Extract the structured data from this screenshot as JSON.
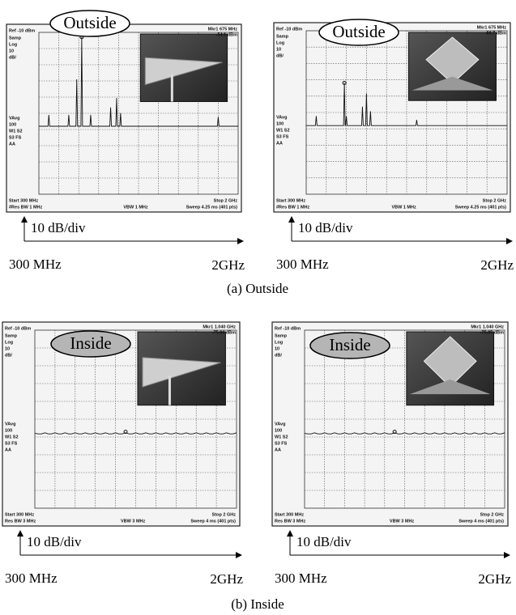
{
  "panels": [
    {
      "badge": "Outside",
      "ref": "Ref -10 dBm",
      "marker": "Mkr1 675 MHz",
      "marker_level": "-54.1 dBm",
      "side_labels": [
        "Samp",
        "Log",
        "10",
        "dB/"
      ],
      "avg_labels": [
        "VAvg",
        "100",
        "W1 S2",
        "S3 FS",
        "AA"
      ],
      "start": "Start 300 MHz",
      "stop": "Stop 2 GHz",
      "res_bw": "#Res BW 1 MHz",
      "vbw": "VBW 1 MHz",
      "sweep": "Sweep 4.25 ms (401 pts)",
      "scale": "10 dB/div",
      "x_start": "300 MHz",
      "x_end": "2GHz"
    },
    {
      "badge": "Outside",
      "ref": "Ref -10 dBm",
      "marker": "Mkr1 675 MHz",
      "marker_level": "-60.7 dBm",
      "side_labels": [
        "Samp",
        "Log",
        "10",
        "dB/"
      ],
      "avg_labels": [
        "VAvg",
        "100",
        "W1 S2",
        "S3 FS",
        "AA"
      ],
      "start": "Start 300 MHz",
      "stop": "Stop 2 GHz",
      "res_bw": "#Res BW 1 MHz",
      "vbw": "VBW 1 MHz",
      "sweep": "Sweep 4.25 ms (401 pts)",
      "scale": "10 dB/div",
      "x_start": "300 MHz",
      "x_end": "2GHz"
    },
    {
      "badge": "Inside",
      "ref": "Ref -10 dBm",
      "marker": "Mkr1 1.040 GHz",
      "marker_level": "-75.64 dBm",
      "side_labels": [
        "Samp",
        "Log",
        "10",
        "dB/"
      ],
      "avg_labels": [
        "VAvg",
        "100",
        "W1 S2",
        "S3 FS",
        "AA"
      ],
      "start": "Start 300 MHz",
      "stop": "Stop 2 GHz",
      "res_bw": "Res BW 3 MHz",
      "vbw": "VBW 3 MHz",
      "sweep": "Sweep 4 ms (401 pts)",
      "scale": "10 dB/div",
      "x_start": "300 MHz",
      "x_end": "2GHz"
    },
    {
      "badge": "Inside",
      "ref": "Ref -10 dBm",
      "marker": "Mkr1 1.040 GHz",
      "marker_level": "-75.65 dBm",
      "side_labels": [
        "Samp",
        "Log",
        "10",
        "dB/"
      ],
      "avg_labels": [
        "VAvg",
        "100",
        "W1 S2",
        "S3 FS",
        "AA"
      ],
      "start": "Start 300 MHz",
      "stop": "Stop 2 GHz",
      "res_bw": "Res BW 3 MHz",
      "vbw": "VBW 3 MHz",
      "sweep": "Sweep 4 ms (401 pts)",
      "scale": "10 dB/div",
      "x_start": "300 MHz",
      "x_end": "2GHz"
    }
  ],
  "captions": [
    "(a) Outside",
    "(b) Inside"
  ]
}
